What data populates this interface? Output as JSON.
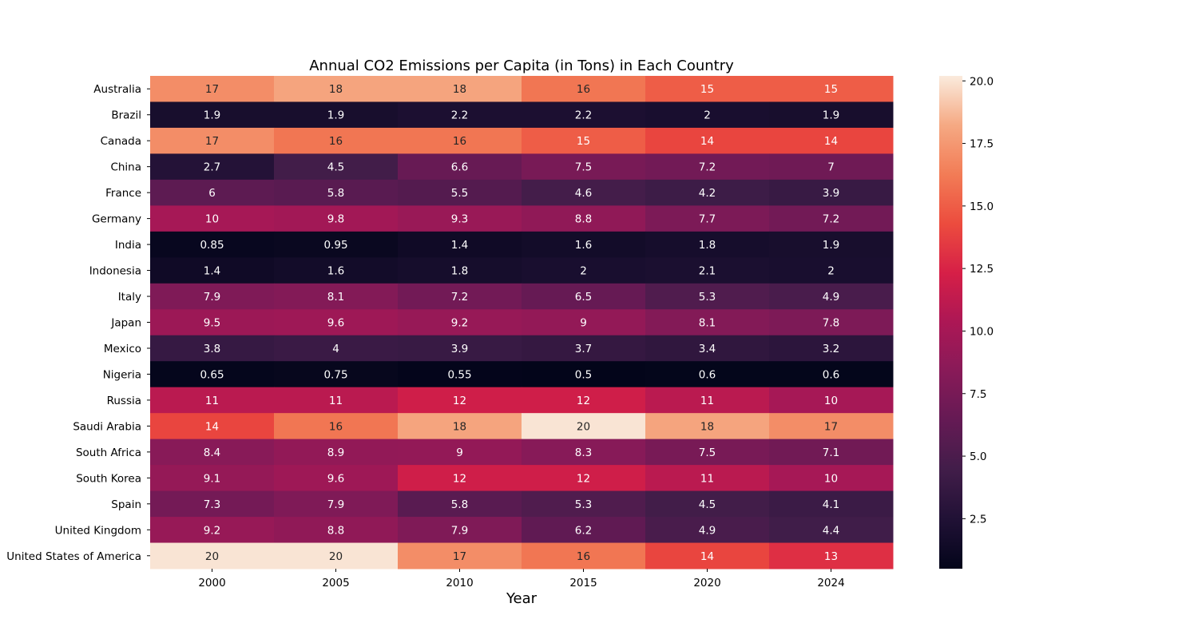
{
  "chart_data": {
    "type": "heatmap",
    "title": "Annual CO2 Emissions per Capita (in Tons) in Each Country",
    "xlabel": "Year",
    "ylabel": "",
    "x": [
      "2000",
      "2005",
      "2010",
      "2015",
      "2020",
      "2024"
    ],
    "y": [
      "Australia",
      "Brazil",
      "Canada",
      "China",
      "France",
      "Germany",
      "India",
      "Indonesia",
      "Italy",
      "Japan",
      "Mexico",
      "Nigeria",
      "Russia",
      "Saudi Arabia",
      "South Africa",
      "South Korea",
      "Spain",
      "United Kingdom",
      "United States of America"
    ],
    "values": [
      [
        17,
        18,
        18,
        16,
        15,
        15
      ],
      [
        1.9,
        1.9,
        2.2,
        2.2,
        2,
        1.9
      ],
      [
        17,
        16,
        16,
        15,
        14,
        14
      ],
      [
        2.7,
        4.5,
        6.6,
        7.5,
        7.2,
        7
      ],
      [
        6,
        5.8,
        5.5,
        4.6,
        4.2,
        3.9
      ],
      [
        10,
        9.8,
        9.3,
        8.8,
        7.7,
        7.2
      ],
      [
        0.85,
        0.95,
        1.4,
        1.6,
        1.8,
        1.9
      ],
      [
        1.4,
        1.6,
        1.8,
        2,
        2.1,
        2
      ],
      [
        7.9,
        8.1,
        7.2,
        6.5,
        5.3,
        4.9
      ],
      [
        9.5,
        9.6,
        9.2,
        9,
        8.1,
        7.8
      ],
      [
        3.8,
        4,
        3.9,
        3.7,
        3.4,
        3.2
      ],
      [
        0.65,
        0.75,
        0.55,
        0.5,
        0.6,
        0.6
      ],
      [
        11,
        11,
        12,
        12,
        11,
        10
      ],
      [
        14,
        16,
        18,
        20,
        18,
        17
      ],
      [
        8.4,
        8.9,
        9,
        8.3,
        7.5,
        7.1
      ],
      [
        9.1,
        9.6,
        12,
        12,
        11,
        10
      ],
      [
        7.3,
        7.9,
        5.8,
        5.3,
        4.5,
        4.1
      ],
      [
        9.2,
        8.8,
        7.9,
        6.2,
        4.9,
        4.4
      ],
      [
        20,
        20,
        17,
        16,
        14,
        13
      ]
    ],
    "colormap": "rocket",
    "vmin": 0.5,
    "vmax": 20.2,
    "colorbar_ticks": [
      "2.5",
      "5.0",
      "7.5",
      "10.0",
      "12.5",
      "15.0",
      "17.5",
      "20.0"
    ],
    "annotations": true
  }
}
